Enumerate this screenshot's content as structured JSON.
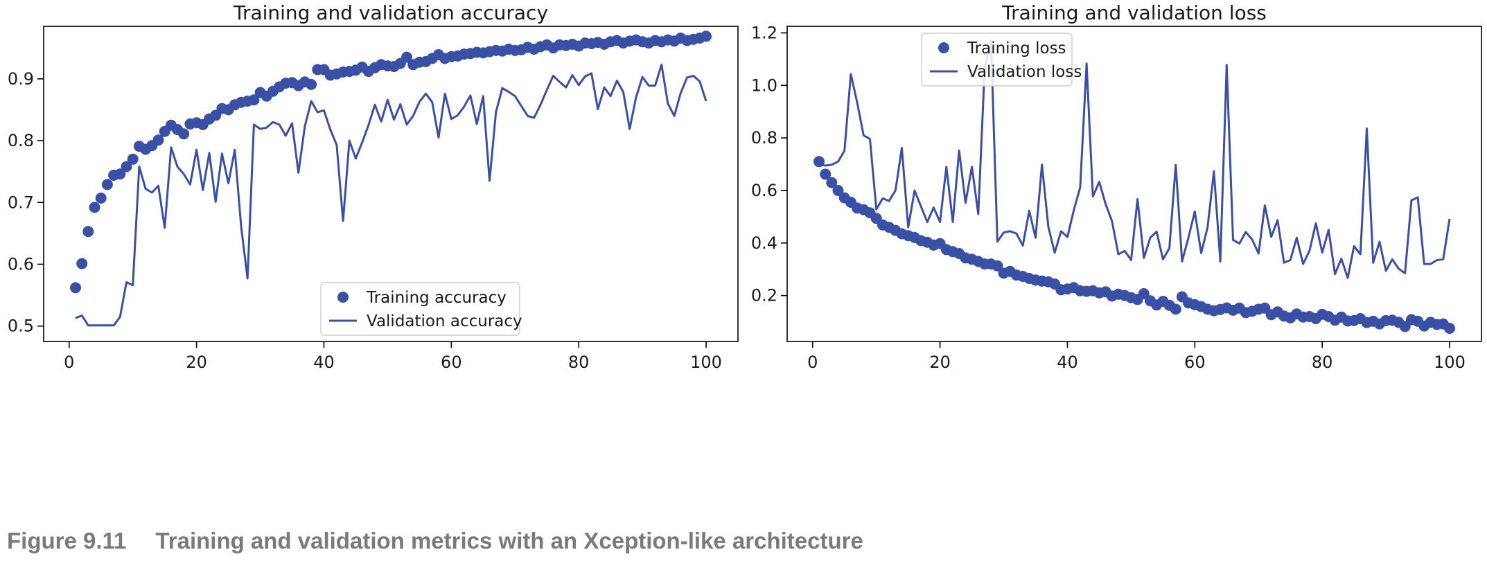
{
  "caption": {
    "label": "Figure 9.11",
    "title": "Training and validation metrics with an Xception-like architecture"
  },
  "colors": {
    "series": "#3a4fa6",
    "axis": "#000000",
    "text": "#1a1a1a"
  },
  "chart_data": [
    {
      "type": "line",
      "title": "Training and validation accuracy",
      "xlabel": "",
      "ylabel": "",
      "xlim": [
        -4,
        105
      ],
      "ylim": [
        0.475,
        0.985
      ],
      "xticks": [
        0,
        20,
        40,
        60,
        80,
        100
      ],
      "yticks": [
        0.5,
        0.6,
        0.7,
        0.8,
        0.9
      ],
      "ytick_labels": [
        "0.5",
        "0.6",
        "0.7",
        "0.8",
        "0.9"
      ],
      "legend_position": "lower-right",
      "grid": false,
      "series": [
        {
          "name": "Training accuracy",
          "style": "markers",
          "x": [
            1,
            2,
            3,
            4,
            5,
            6,
            7,
            8,
            9,
            10,
            11,
            12,
            13,
            14,
            15,
            16,
            17,
            18,
            19,
            20,
            21,
            22,
            23,
            24,
            25,
            26,
            27,
            28,
            29,
            30,
            31,
            32,
            33,
            34,
            35,
            36,
            37,
            38,
            39,
            40,
            41,
            42,
            43,
            44,
            45,
            46,
            47,
            48,
            49,
            50,
            51,
            52,
            53,
            54,
            55,
            56,
            57,
            58,
            59,
            60,
            61,
            62,
            63,
            64,
            65,
            66,
            67,
            68,
            69,
            70,
            71,
            72,
            73,
            74,
            75,
            76,
            77,
            78,
            79,
            80,
            81,
            82,
            83,
            84,
            85,
            86,
            87,
            88,
            89,
            90,
            91,
            92,
            93,
            94,
            95,
            96,
            97,
            98,
            99,
            100
          ],
          "y": [
            0.562,
            0.601,
            0.653,
            0.692,
            0.707,
            0.729,
            0.744,
            0.746,
            0.758,
            0.77,
            0.791,
            0.786,
            0.792,
            0.801,
            0.815,
            0.825,
            0.818,
            0.811,
            0.827,
            0.829,
            0.826,
            0.835,
            0.841,
            0.852,
            0.85,
            0.858,
            0.862,
            0.864,
            0.866,
            0.878,
            0.872,
            0.88,
            0.887,
            0.893,
            0.894,
            0.889,
            0.895,
            0.891,
            0.915,
            0.915,
            0.906,
            0.908,
            0.911,
            0.912,
            0.914,
            0.919,
            0.912,
            0.918,
            0.923,
            0.921,
            0.92,
            0.925,
            0.935,
            0.923,
            0.927,
            0.928,
            0.933,
            0.939,
            0.933,
            0.936,
            0.937,
            0.94,
            0.941,
            0.943,
            0.942,
            0.944,
            0.946,
            0.945,
            0.948,
            0.946,
            0.947,
            0.951,
            0.948,
            0.952,
            0.955,
            0.95,
            0.955,
            0.954,
            0.956,
            0.953,
            0.958,
            0.957,
            0.959,
            0.956,
            0.96,
            0.962,
            0.958,
            0.961,
            0.963,
            0.96,
            0.958,
            0.962,
            0.96,
            0.963,
            0.961,
            0.966,
            0.962,
            0.964,
            0.966,
            0.969
          ]
        },
        {
          "name": "Validation accuracy",
          "style": "line",
          "x": [
            1,
            2,
            3,
            4,
            5,
            6,
            7,
            8,
            9,
            10,
            11,
            12,
            13,
            14,
            15,
            16,
            17,
            18,
            19,
            20,
            21,
            22,
            23,
            24,
            25,
            26,
            27,
            28,
            29,
            30,
            31,
            32,
            33,
            34,
            35,
            36,
            37,
            38,
            39,
            40,
            41,
            42,
            43,
            44,
            45,
            46,
            47,
            48,
            49,
            50,
            51,
            52,
            53,
            54,
            55,
            56,
            57,
            58,
            59,
            60,
            61,
            62,
            63,
            64,
            65,
            66,
            67,
            68,
            69,
            70,
            71,
            72,
            73,
            74,
            75,
            76,
            77,
            78,
            79,
            80,
            81,
            82,
            83,
            84,
            85,
            86,
            87,
            88,
            89,
            90,
            91,
            92,
            93,
            94,
            95,
            96,
            97,
            98,
            99,
            100
          ],
          "y": [
            0.513,
            0.517,
            0.501,
            0.501,
            0.501,
            0.501,
            0.501,
            0.515,
            0.571,
            0.566,
            0.758,
            0.722,
            0.716,
            0.727,
            0.659,
            0.789,
            0.758,
            0.746,
            0.729,
            0.785,
            0.72,
            0.78,
            0.701,
            0.779,
            0.731,
            0.785,
            0.661,
            0.577,
            0.826,
            0.819,
            0.821,
            0.83,
            0.826,
            0.808,
            0.828,
            0.748,
            0.823,
            0.864,
            0.846,
            0.849,
            0.818,
            0.793,
            0.67,
            0.8,
            0.771,
            0.797,
            0.825,
            0.858,
            0.831,
            0.866,
            0.834,
            0.859,
            0.826,
            0.84,
            0.863,
            0.876,
            0.862,
            0.805,
            0.876,
            0.835,
            0.841,
            0.855,
            0.873,
            0.827,
            0.872,
            0.735,
            0.846,
            0.885,
            0.879,
            0.872,
            0.856,
            0.84,
            0.837,
            0.858,
            0.882,
            0.905,
            0.895,
            0.886,
            0.906,
            0.89,
            0.904,
            0.909,
            0.851,
            0.886,
            0.872,
            0.897,
            0.879,
            0.819,
            0.87,
            0.903,
            0.889,
            0.889,
            0.923,
            0.86,
            0.84,
            0.877,
            0.902,
            0.905,
            0.896,
            0.864
          ]
        }
      ]
    },
    {
      "type": "line",
      "title": "Training and validation loss",
      "xlabel": "",
      "ylabel": "",
      "xlim": [
        -4,
        105
      ],
      "ylim": [
        0.025,
        1.225
      ],
      "xticks": [
        0,
        20,
        40,
        60,
        80,
        100
      ],
      "yticks": [
        0.2,
        0.4,
        0.6,
        0.8,
        1.0,
        1.2
      ],
      "ytick_labels": [
        "0.2",
        "0.4",
        "0.6",
        "0.8",
        "1.0",
        "1.2"
      ],
      "legend_position": "upper-right",
      "grid": false,
      "series": [
        {
          "name": "Training loss",
          "style": "markers",
          "x": [
            1,
            2,
            3,
            4,
            5,
            6,
            7,
            8,
            9,
            10,
            11,
            12,
            13,
            14,
            15,
            16,
            17,
            18,
            19,
            20,
            21,
            22,
            23,
            24,
            25,
            26,
            27,
            28,
            29,
            30,
            31,
            32,
            33,
            34,
            35,
            36,
            37,
            38,
            39,
            40,
            41,
            42,
            43,
            44,
            45,
            46,
            47,
            48,
            49,
            50,
            51,
            52,
            53,
            54,
            55,
            56,
            57,
            58,
            59,
            60,
            61,
            62,
            63,
            64,
            65,
            66,
            67,
            68,
            69,
            70,
            71,
            72,
            73,
            74,
            75,
            76,
            77,
            78,
            79,
            80,
            81,
            82,
            83,
            84,
            85,
            86,
            87,
            88,
            89,
            90,
            91,
            92,
            93,
            94,
            95,
            96,
            97,
            98,
            99,
            100
          ],
          "y": [
            0.71,
            0.662,
            0.63,
            0.6,
            0.572,
            0.555,
            0.533,
            0.527,
            0.515,
            0.494,
            0.469,
            0.46,
            0.448,
            0.435,
            0.428,
            0.421,
            0.409,
            0.403,
            0.392,
            0.398,
            0.375,
            0.367,
            0.36,
            0.343,
            0.338,
            0.33,
            0.32,
            0.32,
            0.313,
            0.285,
            0.292,
            0.278,
            0.273,
            0.265,
            0.259,
            0.255,
            0.252,
            0.244,
            0.222,
            0.225,
            0.23,
            0.218,
            0.216,
            0.218,
            0.21,
            0.214,
            0.198,
            0.205,
            0.2,
            0.192,
            0.185,
            0.207,
            0.18,
            0.164,
            0.178,
            0.163,
            0.148,
            0.195,
            0.172,
            0.165,
            0.158,
            0.148,
            0.142,
            0.147,
            0.153,
            0.144,
            0.152,
            0.135,
            0.14,
            0.148,
            0.152,
            0.127,
            0.138,
            0.122,
            0.115,
            0.13,
            0.118,
            0.12,
            0.112,
            0.128,
            0.12,
            0.106,
            0.118,
            0.103,
            0.105,
            0.112,
            0.097,
            0.102,
            0.092,
            0.105,
            0.106,
            0.098,
            0.082,
            0.108,
            0.102,
            0.084,
            0.098,
            0.09,
            0.092,
            0.075
          ]
        },
        {
          "name": "Validation loss",
          "style": "line",
          "x": [
            1,
            2,
            3,
            4,
            5,
            6,
            7,
            8,
            9,
            10,
            11,
            12,
            13,
            14,
            15,
            16,
            17,
            18,
            19,
            20,
            21,
            22,
            23,
            24,
            25,
            26,
            27,
            28,
            29,
            30,
            31,
            32,
            33,
            34,
            35,
            36,
            37,
            38,
            39,
            40,
            41,
            42,
            43,
            44,
            45,
            46,
            47,
            48,
            49,
            50,
            51,
            52,
            53,
            54,
            55,
            56,
            57,
            58,
            59,
            60,
            61,
            62,
            63,
            64,
            65,
            66,
            67,
            68,
            69,
            70,
            71,
            72,
            73,
            74,
            75,
            76,
            77,
            78,
            79,
            80,
            81,
            82,
            83,
            84,
            85,
            86,
            87,
            88,
            89,
            90,
            91,
            92,
            93,
            94,
            95,
            96,
            97,
            98,
            99,
            100
          ],
          "y": [
            0.698,
            0.695,
            0.698,
            0.71,
            0.751,
            1.043,
            0.934,
            0.81,
            0.796,
            0.528,
            0.57,
            0.56,
            0.6,
            0.762,
            0.46,
            0.6,
            0.54,
            0.48,
            0.535,
            0.48,
            0.69,
            0.48,
            0.752,
            0.553,
            0.69,
            0.51,
            1.062,
            1.172,
            0.405,
            0.44,
            0.445,
            0.436,
            0.39,
            0.523,
            0.42,
            0.698,
            0.462,
            0.363,
            0.445,
            0.423,
            0.525,
            0.612,
            1.083,
            0.577,
            0.633,
            0.548,
            0.483,
            0.357,
            0.37,
            0.335,
            0.567,
            0.343,
            0.42,
            0.443,
            0.338,
            0.38,
            0.697,
            0.33,
            0.42,
            0.52,
            0.362,
            0.459,
            0.673,
            0.33,
            1.078,
            0.412,
            0.398,
            0.442,
            0.413,
            0.36,
            0.543,
            0.423,
            0.487,
            0.325,
            0.335,
            0.42,
            0.32,
            0.37,
            0.475,
            0.364,
            0.45,
            0.282,
            0.34,
            0.267,
            0.388,
            0.357,
            0.836,
            0.325,
            0.405,
            0.294,
            0.338,
            0.302,
            0.285,
            0.562,
            0.574,
            0.32,
            0.32,
            0.335,
            0.338,
            0.492
          ]
        }
      ]
    }
  ]
}
